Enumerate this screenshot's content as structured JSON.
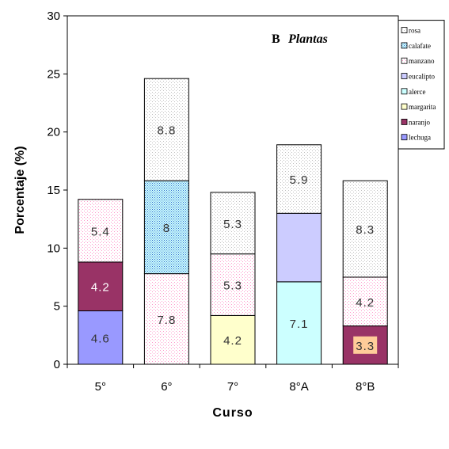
{
  "chart_data": {
    "type": "bar",
    "stacked": true,
    "panel_label": "B",
    "title": "Plantas",
    "xlabel": "Curso",
    "ylabel": "Porcentaje (%)",
    "ylim": [
      0,
      30
    ],
    "yticks": [
      0,
      5,
      10,
      15,
      20,
      25,
      30
    ],
    "grid": false,
    "legend_position": "top-right",
    "categories": [
      "5°",
      "6°",
      "7°",
      "8°A",
      "8°B"
    ],
    "series": [
      {
        "name": "lechuga",
        "color": "#9999ff",
        "pattern": "solid",
        "values": [
          4.6,
          0,
          0,
          0,
          0
        ],
        "labels": [
          "4.6",
          "",
          "",
          "",
          ""
        ]
      },
      {
        "name": "naranjo",
        "color": "#993366",
        "pattern": "solid",
        "values": [
          4.2,
          0,
          0,
          0,
          3.3
        ],
        "labels": [
          "4.2",
          "",
          "",
          "",
          ""
        ]
      },
      {
        "name": "margarita",
        "color": "#ffffcc",
        "pattern": "solid",
        "values": [
          0,
          0,
          4.2,
          0,
          0
        ],
        "labels": [
          "",
          "",
          "4.2",
          "",
          ""
        ]
      },
      {
        "name": "alerce",
        "color": "#ccffff",
        "pattern": "solid",
        "values": [
          0,
          0,
          0,
          7.1,
          0
        ],
        "labels": [
          "",
          "",
          "",
          "7.1",
          ""
        ]
      },
      {
        "name": "eucalipto",
        "color": "#ccccff",
        "pattern": "solid",
        "values": [
          0,
          0,
          0,
          5.9,
          0
        ],
        "labels": [
          "",
          "",
          "",
          "",
          ""
        ]
      },
      {
        "name": "manzano",
        "color": "#ff99cc",
        "pattern": "dots",
        "values": [
          5.4,
          7.8,
          5.3,
          0,
          4.2
        ],
        "labels": [
          "5.4",
          "7.8",
          "5.3",
          "",
          "4.2"
        ]
      },
      {
        "name": "calafate",
        "color": "#3366cc",
        "pattern": "dense",
        "values": [
          0,
          8,
          0,
          0,
          0
        ],
        "labels": [
          "",
          "8",
          "",
          "",
          ""
        ]
      },
      {
        "name": "rosa",
        "color": "#c0c0c0",
        "pattern": "sparse",
        "values": [
          0,
          8.8,
          5.3,
          5.9,
          8.3
        ],
        "labels": [
          "",
          "8.8",
          "5.3",
          "5.9",
          "8.3"
        ]
      }
    ],
    "legend_order": [
      "rosa",
      "calafate",
      "manzano",
      "eucalipto",
      "alerce",
      "margarita",
      "naranjo",
      "lechuga"
    ],
    "value_label_overlays": [
      {
        "category": "8°B",
        "text": "3.3",
        "color": "#ffcc99"
      }
    ]
  }
}
